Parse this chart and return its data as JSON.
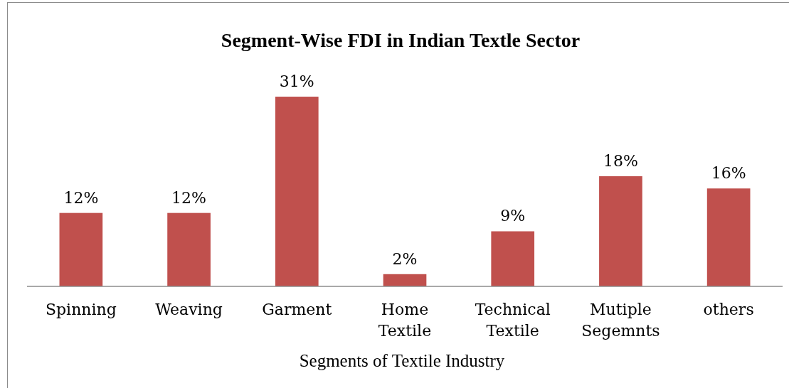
{
  "chart_data": {
    "type": "bar",
    "title": "Segment-Wise FDI in Indian Textle Sector",
    "xlabel": "Segments of Textile Industry",
    "categories": [
      "Spinning",
      "Weaving",
      "Garment",
      "Home Textile",
      "Technical Textile",
      "Mutiple Segemnts",
      "others"
    ],
    "values": [
      12,
      12,
      31,
      2,
      9,
      18,
      16
    ],
    "value_labels": [
      "12%",
      "12%",
      "31%",
      "2%",
      "9%",
      "18%",
      "16%"
    ],
    "color": "#c0504d",
    "grid": false,
    "legend": false
  }
}
